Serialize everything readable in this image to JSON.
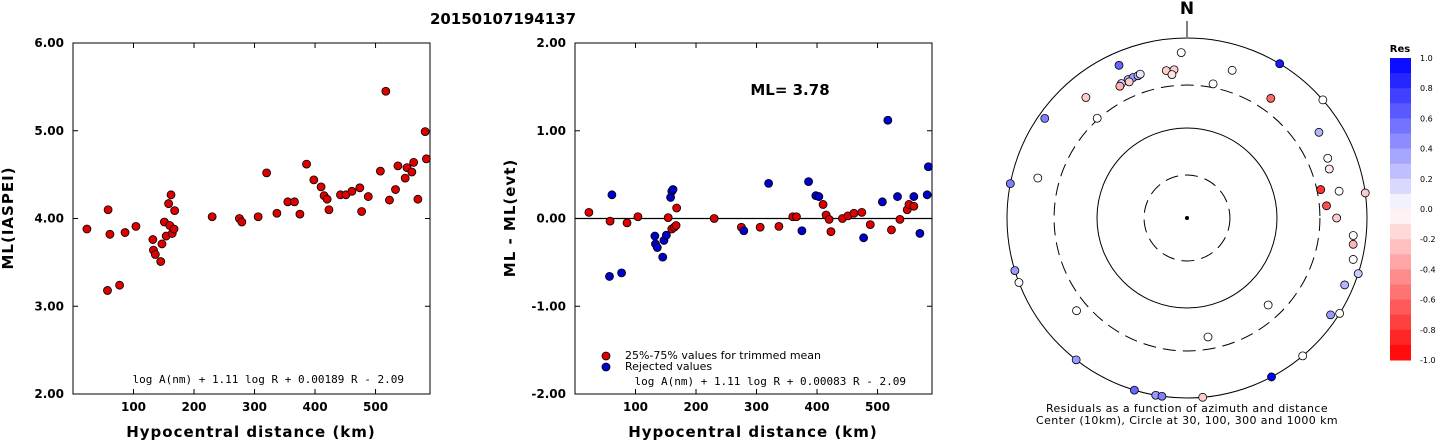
{
  "title": "20150107194137",
  "colors": {
    "accepted": "#dd0000",
    "rejected": "#0000cc",
    "stroke": "#000000"
  },
  "chart_data": [
    {
      "type": "scatter",
      "xlabel": "Hypocentral distance (km)",
      "ylabel": "ML(IASPEI)",
      "xlim": [
        0,
        590
      ],
      "ylim": [
        2.0,
        6.0
      ],
      "xticks": [
        "100",
        "200",
        "300",
        "400",
        "500"
      ],
      "xtick_values": [
        100,
        200,
        300,
        400,
        500
      ],
      "yticks": [
        "2.00",
        "3.00",
        "4.00",
        "5.00",
        "6.00"
      ],
      "ytick_values": [
        2,
        3,
        4,
        5,
        6
      ],
      "formula": "log A(nm) + 1.11 log R + 0.00189 R - 2.09",
      "points": [
        [
          23,
          3.88
        ],
        [
          57,
          3.18
        ],
        [
          58,
          4.1
        ],
        [
          61,
          3.82
        ],
        [
          77,
          3.24
        ],
        [
          86,
          3.84
        ],
        [
          104,
          3.91
        ],
        [
          132,
          3.76
        ],
        [
          133,
          3.64
        ],
        [
          136,
          3.59
        ],
        [
          145,
          3.51
        ],
        [
          147,
          3.71
        ],
        [
          151,
          3.96
        ],
        [
          154,
          3.8
        ],
        [
          158,
          4.17
        ],
        [
          160,
          3.92
        ],
        [
          162,
          4.27
        ],
        [
          164,
          3.83
        ],
        [
          167,
          3.88
        ],
        [
          168,
          4.09
        ],
        [
          230,
          4.02
        ],
        [
          275,
          4.0
        ],
        [
          279,
          3.96
        ],
        [
          306,
          4.02
        ],
        [
          320,
          4.52
        ],
        [
          337,
          4.06
        ],
        [
          355,
          4.19
        ],
        [
          366,
          4.19
        ],
        [
          375,
          4.05
        ],
        [
          386,
          4.62
        ],
        [
          398,
          4.44
        ],
        [
          410,
          4.36
        ],
        [
          415,
          4.26
        ],
        [
          420,
          4.22
        ],
        [
          423,
          4.1
        ],
        [
          442,
          4.27
        ],
        [
          451,
          4.27
        ],
        [
          461,
          4.31
        ],
        [
          474,
          4.35
        ],
        [
          477,
          4.08
        ],
        [
          488,
          4.25
        ],
        [
          508,
          4.54
        ],
        [
          517,
          5.45
        ],
        [
          523,
          4.21
        ],
        [
          533,
          4.33
        ],
        [
          537,
          4.6
        ],
        [
          549,
          4.46
        ],
        [
          552,
          4.58
        ],
        [
          560,
          4.53
        ],
        [
          563,
          4.64
        ],
        [
          570,
          4.22
        ],
        [
          582,
          4.99
        ],
        [
          584,
          4.68
        ]
      ]
    },
    {
      "type": "scatter",
      "xlabel": "Hypocentral distance (km)",
      "ylabel": "ML - ML(evt)",
      "xlim": [
        0,
        590
      ],
      "ylim": [
        -2.0,
        2.0
      ],
      "xticks": [
        "100",
        "200",
        "300",
        "400",
        "500"
      ],
      "xtick_values": [
        100,
        200,
        300,
        400,
        500
      ],
      "yticks": [
        "-2.00",
        "-1.00",
        "0.00",
        "1.00",
        "2.00"
      ],
      "ytick_values": [
        -2,
        -1,
        0,
        1,
        2
      ],
      "annotation": "ML= 3.78",
      "legend": [
        {
          "label": "25%-75% values for trimmed mean",
          "color": "#dd0000"
        },
        {
          "label": "Rejected values",
          "color": "#0000cc"
        }
      ],
      "formula": "log A(nm) + 1.11 log R + 0.00083 R - 2.09",
      "series": [
        {
          "name": "25%-75% values for trimmed mean",
          "points": [
            [
              23,
              0.07
            ],
            [
              58,
              -0.03
            ],
            [
              86,
              -0.05
            ],
            [
              104,
              0.02
            ],
            [
              154,
              0.01
            ],
            [
              160,
              -0.12
            ],
            [
              164,
              -0.1
            ],
            [
              167,
              -0.08
            ],
            [
              168,
              0.12
            ],
            [
              230,
              0.0
            ],
            [
              275,
              -0.1
            ],
            [
              306,
              -0.1
            ],
            [
              337,
              -0.09
            ],
            [
              360,
              0.02
            ],
            [
              366,
              0.02
            ],
            [
              410,
              0.16
            ],
            [
              415,
              0.04
            ],
            [
              420,
              -0.01
            ],
            [
              423,
              -0.15
            ],
            [
              442,
              0.0
            ],
            [
              451,
              0.03
            ],
            [
              461,
              0.06
            ],
            [
              474,
              0.07
            ],
            [
              488,
              -0.07
            ],
            [
              523,
              -0.13
            ],
            [
              537,
              -0.01
            ],
            [
              549,
              0.1
            ],
            [
              552,
              0.16
            ],
            [
              560,
              0.14
            ]
          ]
        },
        {
          "name": "Rejected values",
          "points": [
            [
              57,
              -0.66
            ],
            [
              61,
              0.27
            ],
            [
              77,
              -0.62
            ],
            [
              132,
              -0.2
            ],
            [
              133,
              -0.29
            ],
            [
              136,
              -0.33
            ],
            [
              145,
              -0.44
            ],
            [
              147,
              -0.25
            ],
            [
              151,
              -0.19
            ],
            [
              158,
              0.24
            ],
            [
              160,
              0.31
            ],
            [
              162,
              0.33
            ],
            [
              279,
              -0.14
            ],
            [
              320,
              0.4
            ],
            [
              375,
              -0.14
            ],
            [
              386,
              0.42
            ],
            [
              398,
              0.26
            ],
            [
              403,
              0.25
            ],
            [
              477,
              -0.22
            ],
            [
              508,
              0.19
            ],
            [
              517,
              1.12
            ],
            [
              533,
              0.25
            ],
            [
              560,
              0.25
            ],
            [
              570,
              -0.17
            ],
            [
              582,
              0.27
            ],
            [
              584,
              0.59
            ]
          ]
        }
      ]
    },
    {
      "type": "scatter",
      "subtype": "polar",
      "north_label": "N",
      "caption_lines": [
        "Residuals as a function of azimuth and distance",
        "Center (10km), Circle at 30, 100, 300 and 1000 km"
      ],
      "colorbar": {
        "title": "Res",
        "range": [
          -1.0,
          1.0
        ],
        "ticks": [
          "1.0",
          "0.8",
          "0.6",
          "0.4",
          "0.2",
          "0.0",
          "-0.2",
          "-0.4",
          "-0.6",
          "-0.8",
          "-1.0"
        ],
        "tick_values": [
          1.0,
          0.8,
          0.6,
          0.4,
          0.2,
          0.0,
          -0.2,
          -0.4,
          -0.6,
          -0.8,
          -1.0
        ]
      },
      "points": [
        {
          "az": 31,
          "dist": 1000,
          "res": 0.9
        },
        {
          "az": 17,
          "dist": 520,
          "res": 0.0
        },
        {
          "az": 358,
          "dist": 690,
          "res": 0.0
        },
        {
          "az": 336,
          "dist": 720,
          "res": 0.6
        },
        {
          "az": 320,
          "dist": 560,
          "res": -0.2
        },
        {
          "az": 334,
          "dist": 460,
          "res": 0.2
        },
        {
          "az": 337,
          "dist": 470,
          "res": 0.3
        },
        {
          "az": 339,
          "dist": 470,
          "res": 0.4
        },
        {
          "az": 341,
          "dist": 470,
          "res": 0.3
        },
        {
          "az": 342,
          "dist": 480,
          "res": 0.1
        },
        {
          "az": 333,
          "dist": 440,
          "res": -0.3
        },
        {
          "az": 337,
          "dist": 440,
          "res": -0.2
        },
        {
          "az": 352,
          "dist": 450,
          "res": -0.2
        },
        {
          "az": 355,
          "dist": 450,
          "res": -0.2
        },
        {
          "az": 354,
          "dist": 400,
          "res": -0.1
        },
        {
          "az": 11,
          "dist": 330,
          "res": 0.0
        },
        {
          "az": 35,
          "dist": 420,
          "res": -0.6
        },
        {
          "az": 305,
          "dist": 850,
          "res": 0.5
        },
        {
          "az": 318,
          "dist": 310,
          "res": 0.0
        },
        {
          "az": 49,
          "dist": 1000,
          "res": 0.0
        },
        {
          "az": 57,
          "dist": 560,
          "res": 0.3
        },
        {
          "az": 67,
          "dist": 500,
          "res": 0.0
        },
        {
          "az": 78,
          "dist": 330,
          "res": -0.8
        },
        {
          "az": 71,
          "dist": 470,
          "res": -0.1
        },
        {
          "az": 80,
          "dist": 520,
          "res": 0.0
        },
        {
          "az": 82,
          "dist": 1000,
          "res": -0.2
        },
        {
          "az": 85,
          "dist": 360,
          "res": -0.7
        },
        {
          "az": 90,
          "dist": 460,
          "res": -0.2
        },
        {
          "az": 96,
          "dist": 720,
          "res": 0.0
        },
        {
          "az": 99,
          "dist": 740,
          "res": -0.3
        },
        {
          "az": 104,
          "dist": 800,
          "res": 0.0
        },
        {
          "az": 108,
          "dist": 1000,
          "res": 0.2
        },
        {
          "az": 113,
          "dist": 800,
          "res": 0.3
        },
        {
          "az": 124,
          "dist": 840,
          "res": 0.4
        },
        {
          "az": 122,
          "dist": 1000,
          "res": 0.0
        },
        {
          "az": 140,
          "dist": 1000,
          "res": 0.0
        },
        {
          "az": 137,
          "dist": 210,
          "res": 0.0
        },
        {
          "az": 175,
          "dist": 1000,
          "res": -0.2
        },
        {
          "az": 152,
          "dist": 1000,
          "res": 1.0
        },
        {
          "az": 170,
          "dist": 220,
          "res": 0.0
        },
        {
          "az": 190,
          "dist": 1000,
          "res": 0.4
        },
        {
          "az": 188,
          "dist": 1000,
          "res": 0.5
        },
        {
          "az": 197,
          "dist": 1000,
          "res": 0.6
        },
        {
          "az": 218,
          "dist": 1000,
          "res": 0.4
        },
        {
          "az": 230,
          "dist": 400,
          "res": 0.0
        },
        {
          "az": 253,
          "dist": 1000,
          "res": 0.4
        },
        {
          "az": 249,
          "dist": 1000,
          "res": 0.0
        },
        {
          "az": 285,
          "dist": 520,
          "res": 0.0
        },
        {
          "az": 281,
          "dist": 1000,
          "res": 0.5
        }
      ]
    }
  ]
}
